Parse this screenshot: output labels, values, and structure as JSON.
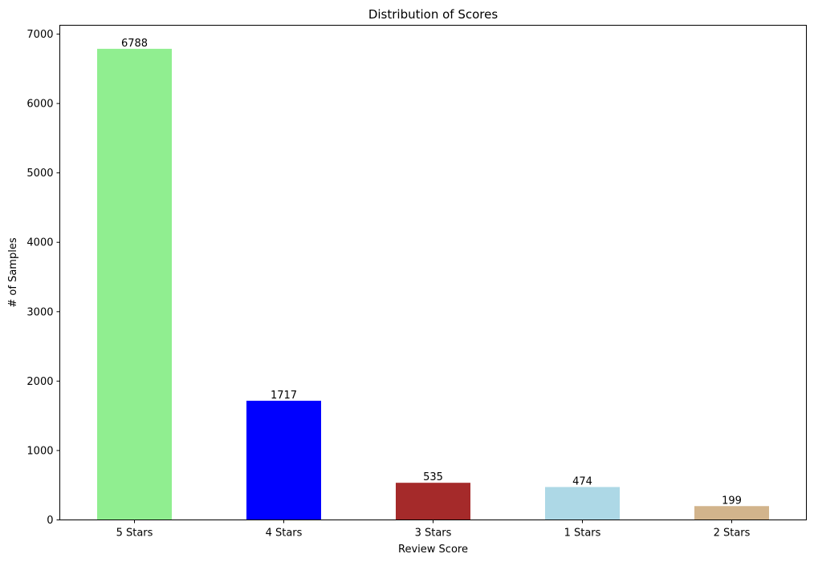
{
  "chart_data": {
    "type": "bar",
    "title": "Distribution of Scores",
    "xlabel": "Review Score",
    "ylabel": "# of Samples",
    "categories": [
      "5 Stars",
      "4 Stars",
      "3 Stars",
      "1 Stars",
      "2 Stars"
    ],
    "values": [
      6788,
      1717,
      535,
      474,
      199
    ],
    "value_labels": [
      "6788",
      "1717",
      "535",
      "474",
      "199"
    ],
    "colors": [
      "#90ee90",
      "#0000ff",
      "#a52a2a",
      "#add8e6",
      "#d2b48c"
    ],
    "ylim": [
      0,
      7127.4
    ],
    "yticks": [
      0,
      1000,
      2000,
      3000,
      4000,
      5000,
      6000,
      7000
    ],
    "ytick_labels": [
      "0",
      "1000",
      "2000",
      "3000",
      "4000",
      "5000",
      "6000",
      "7000"
    ],
    "grid": false,
    "legend": "none"
  }
}
